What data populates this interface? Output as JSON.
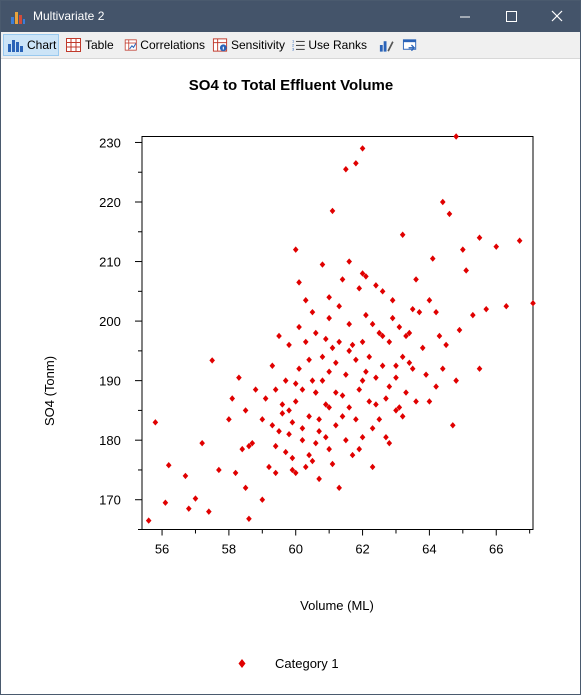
{
  "window": {
    "title": "Multivariate 2"
  },
  "toolbar": {
    "buttons": [
      {
        "label": "Chart",
        "icon": "bar-chart-icon",
        "active": true
      },
      {
        "label": "Table",
        "icon": "table-icon",
        "active": false
      },
      {
        "label": "Correlations",
        "icon": "correlations-icon",
        "active": false
      },
      {
        "label": "Sensitivity",
        "icon": "sensitivity-icon",
        "active": false
      },
      {
        "label": "Use Ranks",
        "icon": "ranks-icon",
        "active": false
      }
    ],
    "extra_icons": [
      "chart-options-icon",
      "export-icon"
    ]
  },
  "chart_data": {
    "type": "scatter",
    "title": "SO4 to Total Effluent Volume",
    "xlabel": "Volume (ML)",
    "ylabel": "SO4 (Tonm)",
    "xlim": [
      55.4,
      67.1
    ],
    "ylim": [
      165,
      231
    ],
    "x_ticks": [
      56,
      58,
      60,
      62,
      64,
      66
    ],
    "y_ticks": [
      170,
      180,
      190,
      200,
      210,
      220,
      230
    ],
    "legend_position": "bottom",
    "marker": "diamond",
    "color": "#e00000",
    "series": [
      {
        "name": "Category 1",
        "points": [
          [
            55.6,
            166.5
          ],
          [
            55.8,
            183.0
          ],
          [
            56.1,
            169.5
          ],
          [
            56.2,
            175.8
          ],
          [
            56.7,
            174.0
          ],
          [
            56.8,
            168.5
          ],
          [
            57.0,
            170.2
          ],
          [
            57.2,
            179.5
          ],
          [
            57.4,
            168.0
          ],
          [
            57.5,
            193.4
          ],
          [
            57.7,
            175.0
          ],
          [
            58.0,
            183.5
          ],
          [
            58.1,
            187.0
          ],
          [
            58.2,
            174.5
          ],
          [
            58.3,
            190.5
          ],
          [
            58.4,
            178.5
          ],
          [
            58.5,
            172.0
          ],
          [
            58.5,
            185.0
          ],
          [
            58.6,
            179.0
          ],
          [
            58.6,
            166.8
          ],
          [
            58.7,
            179.5
          ],
          [
            58.8,
            188.5
          ],
          [
            59.0,
            183.5
          ],
          [
            59.0,
            170.0
          ],
          [
            59.1,
            187.0
          ],
          [
            59.2,
            175.5
          ],
          [
            59.3,
            192.5
          ],
          [
            59.3,
            182.5
          ],
          [
            59.4,
            174.5
          ],
          [
            59.4,
            188.5
          ],
          [
            59.5,
            197.5
          ],
          [
            59.5,
            181.5
          ],
          [
            59.6,
            186.0
          ],
          [
            59.7,
            190.0
          ],
          [
            59.7,
            178.0
          ],
          [
            59.8,
            196.0
          ],
          [
            59.8,
            185.0
          ],
          [
            59.9,
            183.0
          ],
          [
            59.9,
            175.0
          ],
          [
            60.0,
            186.5
          ],
          [
            60.0,
            174.5
          ],
          [
            60.0,
            212.0
          ],
          [
            60.1,
            206.5
          ],
          [
            60.1,
            192.0
          ],
          [
            60.2,
            180.0
          ],
          [
            60.2,
            188.5
          ],
          [
            60.3,
            203.5
          ],
          [
            60.3,
            196.5
          ],
          [
            60.4,
            184.0
          ],
          [
            60.4,
            177.5
          ],
          [
            60.5,
            190.0
          ],
          [
            60.5,
            176.5
          ],
          [
            60.6,
            198.0
          ],
          [
            60.6,
            188.0
          ],
          [
            60.7,
            183.5
          ],
          [
            60.7,
            173.5
          ],
          [
            60.8,
            209.5
          ],
          [
            60.8,
            194.0
          ],
          [
            60.9,
            180.5
          ],
          [
            60.9,
            186.0
          ],
          [
            61.0,
            200.5
          ],
          [
            61.0,
            191.5
          ],
          [
            61.0,
            178.5
          ],
          [
            61.1,
            218.5
          ],
          [
            61.1,
            195.5
          ],
          [
            61.2,
            188.0
          ],
          [
            61.2,
            182.5
          ],
          [
            61.3,
            196.5
          ],
          [
            61.3,
            172.0
          ],
          [
            61.4,
            207.0
          ],
          [
            61.4,
            184.0
          ],
          [
            61.5,
            225.5
          ],
          [
            61.5,
            191.0
          ],
          [
            61.6,
            199.5
          ],
          [
            61.6,
            185.5
          ],
          [
            61.7,
            177.5
          ],
          [
            61.8,
            226.5
          ],
          [
            61.8,
            193.5
          ],
          [
            61.9,
            205.5
          ],
          [
            61.9,
            188.5
          ],
          [
            62.0,
            229.0
          ],
          [
            62.0,
            196.5
          ],
          [
            62.0,
            180.5
          ],
          [
            62.1,
            207.5
          ],
          [
            62.1,
            191.5
          ],
          [
            62.2,
            186.5
          ],
          [
            62.3,
            199.5
          ],
          [
            62.3,
            175.5
          ],
          [
            62.4,
            190.5
          ],
          [
            62.5,
            183.5
          ],
          [
            62.6,
            205.0
          ],
          [
            62.6,
            192.5
          ],
          [
            62.7,
            187.0
          ],
          [
            62.8,
            196.5
          ],
          [
            62.8,
            179.5
          ],
          [
            62.9,
            203.5
          ],
          [
            63.0,
            190.5
          ],
          [
            63.0,
            185.0
          ],
          [
            63.1,
            199.0
          ],
          [
            63.2,
            214.5
          ],
          [
            63.2,
            194.0
          ],
          [
            63.3,
            188.0
          ],
          [
            63.4,
            198.0
          ],
          [
            63.5,
            202.0
          ],
          [
            63.5,
            192.0
          ],
          [
            63.6,
            186.5
          ],
          [
            63.8,
            195.5
          ],
          [
            63.9,
            191.0
          ],
          [
            64.0,
            203.5
          ],
          [
            64.0,
            186.5
          ],
          [
            64.1,
            210.5
          ],
          [
            64.2,
            189.0
          ],
          [
            64.3,
            197.5
          ],
          [
            64.4,
            220.0
          ],
          [
            64.4,
            192.0
          ],
          [
            64.6,
            218.0
          ],
          [
            64.7,
            182.5
          ],
          [
            64.8,
            231.0
          ],
          [
            64.9,
            198.5
          ],
          [
            65.0,
            212.0
          ],
          [
            65.3,
            201.0
          ],
          [
            65.5,
            214.0
          ],
          [
            65.5,
            192.0
          ],
          [
            65.7,
            202.0
          ],
          [
            66.0,
            212.5
          ],
          [
            66.3,
            202.5
          ],
          [
            66.7,
            213.5
          ],
          [
            67.1,
            203.0
          ],
          [
            59.6,
            184.5
          ],
          [
            59.8,
            181.0
          ],
          [
            60.0,
            189.5
          ],
          [
            60.2,
            182.0
          ],
          [
            60.4,
            193.5
          ],
          [
            60.6,
            179.5
          ],
          [
            60.8,
            190.0
          ],
          [
            61.0,
            185.5
          ],
          [
            61.2,
            193.0
          ],
          [
            61.4,
            187.5
          ],
          [
            61.6,
            195.0
          ],
          [
            61.8,
            183.5
          ],
          [
            62.0,
            190.0
          ],
          [
            62.2,
            194.0
          ],
          [
            62.4,
            186.0
          ],
          [
            62.6,
            197.5
          ],
          [
            62.8,
            189.0
          ],
          [
            63.0,
            192.5
          ],
          [
            63.2,
            184.0
          ],
          [
            63.4,
            193.0
          ],
          [
            60.1,
            199.0
          ],
          [
            60.5,
            201.5
          ],
          [
            60.9,
            197.0
          ],
          [
            61.3,
            202.5
          ],
          [
            61.7,
            196.0
          ],
          [
            62.1,
            201.0
          ],
          [
            62.5,
            198.0
          ],
          [
            62.9,
            200.5
          ],
          [
            63.3,
            197.5
          ],
          [
            63.7,
            201.5
          ],
          [
            59.4,
            179.0
          ],
          [
            59.9,
            177.0
          ],
          [
            60.3,
            175.5
          ],
          [
            60.7,
            181.5
          ],
          [
            61.1,
            176.0
          ],
          [
            61.5,
            180.0
          ],
          [
            61.9,
            178.5
          ],
          [
            62.3,
            182.0
          ],
          [
            62.7,
            180.5
          ],
          [
            63.1,
            185.5
          ],
          [
            60.6,
            188.0
          ],
          [
            61.0,
            204.0
          ],
          [
            61.6,
            210.0
          ],
          [
            62.0,
            208.0
          ],
          [
            62.4,
            206.0
          ],
          [
            63.6,
            207.0
          ],
          [
            64.2,
            201.5
          ],
          [
            64.5,
            196.0
          ],
          [
            65.1,
            208.5
          ],
          [
            64.8,
            190.0
          ]
        ]
      }
    ]
  }
}
